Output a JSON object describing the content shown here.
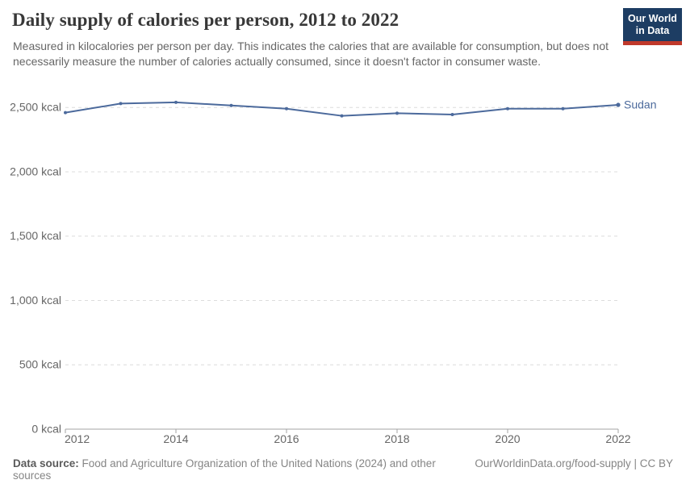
{
  "header": {
    "title": "Daily supply of calories per person, 2012 to 2022",
    "subtitle": "Measured in kilocalories per person per day. This indicates the calories that are available for consumption, but does not necessarily measure the number of calories actually consumed, since it doesn't factor in consumer waste.",
    "logo": {
      "line1": "Our World",
      "line2": "in Data",
      "bg_color": "#1d3d63",
      "accent_color": "#c0392b"
    }
  },
  "chart_data": {
    "type": "line",
    "title": "Daily supply of calories per person, 2012 to 2022",
    "x": [
      2012,
      2013,
      2014,
      2015,
      2016,
      2017,
      2018,
      2019,
      2020,
      2021,
      2022
    ],
    "series": [
      {
        "name": "Sudan",
        "color": "#4C6A9C",
        "values": [
          2460,
          2530,
          2540,
          2515,
          2490,
          2435,
          2455,
          2445,
          2490,
          2490,
          2520
        ]
      }
    ],
    "xticks": [
      2012,
      2014,
      2016,
      2018,
      2020,
      2022
    ],
    "yticks": [
      0,
      500,
      1000,
      1500,
      2000,
      2500
    ],
    "ytick_labels": [
      "0 kcal",
      "500 kcal",
      "1,000 kcal",
      "1,500 kcal",
      "2,000 kcal",
      "2,500 kcal"
    ],
    "ylim": [
      0,
      2500
    ],
    "xlabel": "",
    "ylabel": "kcal",
    "grid": "horizontal-dashed",
    "legend": "line-end-label",
    "grid_color": "#dcdcdc",
    "axis_color": "#a3a3a3"
  },
  "footer": {
    "datasource_label": "Data source:",
    "datasource_text": "Food and Agriculture Organization of the United Nations (2024) and other sources",
    "link": "OurWorldinData.org/food-supply | CC BY"
  }
}
